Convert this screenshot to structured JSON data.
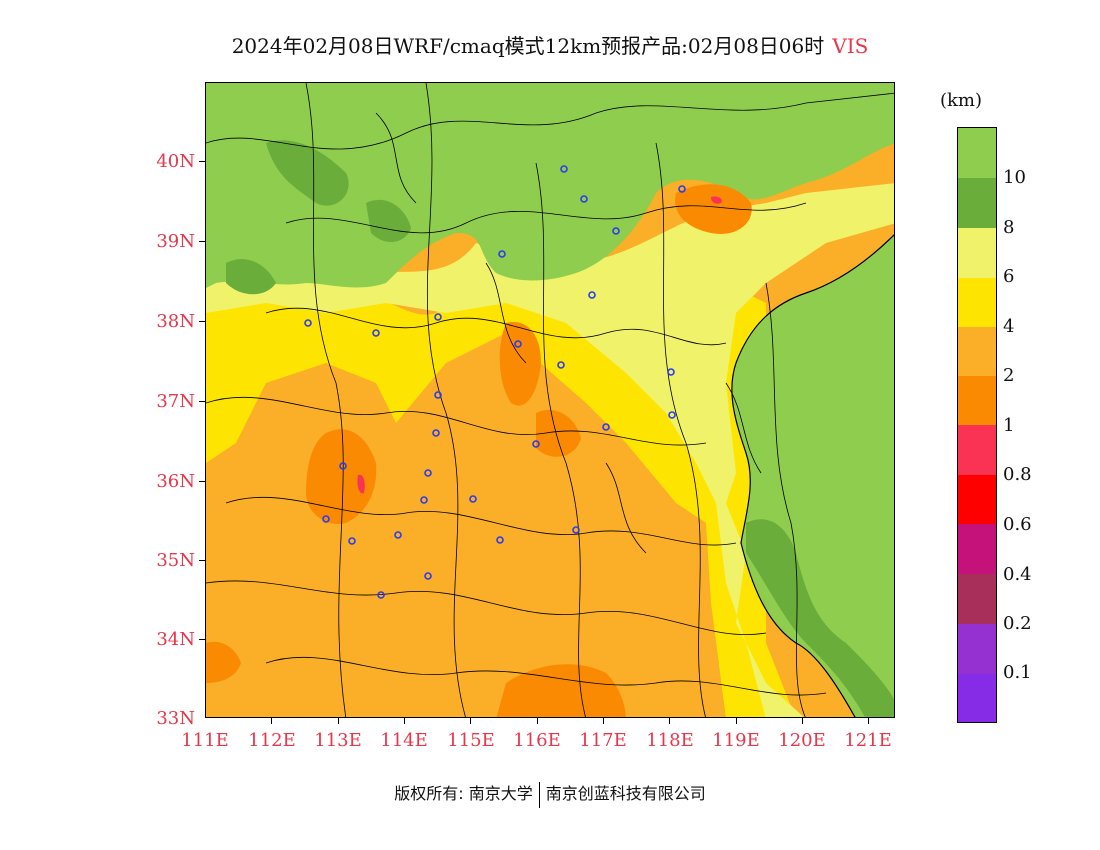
{
  "title": {
    "main": "2024年02月08日WRF/cmaq模式12km预报产品:02月08日06时",
    "variable": "VIS"
  },
  "axes": {
    "y_labels": [
      "40N",
      "39N",
      "38N",
      "37N",
      "36N",
      "35N",
      "34N",
      "33N"
    ],
    "x_labels": [
      "111E",
      "112E",
      "113E",
      "114E",
      "115E",
      "116E",
      "117E",
      "118E",
      "119E",
      "120E",
      "121E"
    ]
  },
  "legend": {
    "unit": "(km)",
    "labels": [
      "10",
      "8",
      "6",
      "4",
      "2",
      "1",
      "0.8",
      "0.6",
      "0.4",
      "0.2",
      "0.1"
    ],
    "colors": [
      "#8fcd4e",
      "#6aad3a",
      "#f0f26a",
      "#fde401",
      "#fbae27",
      "#fb8a03",
      "#fa3355",
      "#fe0000",
      "#c4127a",
      "#a92f5b",
      "#9431d0",
      "#862be6"
    ]
  },
  "footer": {
    "left": "版权所有: 南京大学",
    "right": "南京创蓝科技有限公司"
  }
}
